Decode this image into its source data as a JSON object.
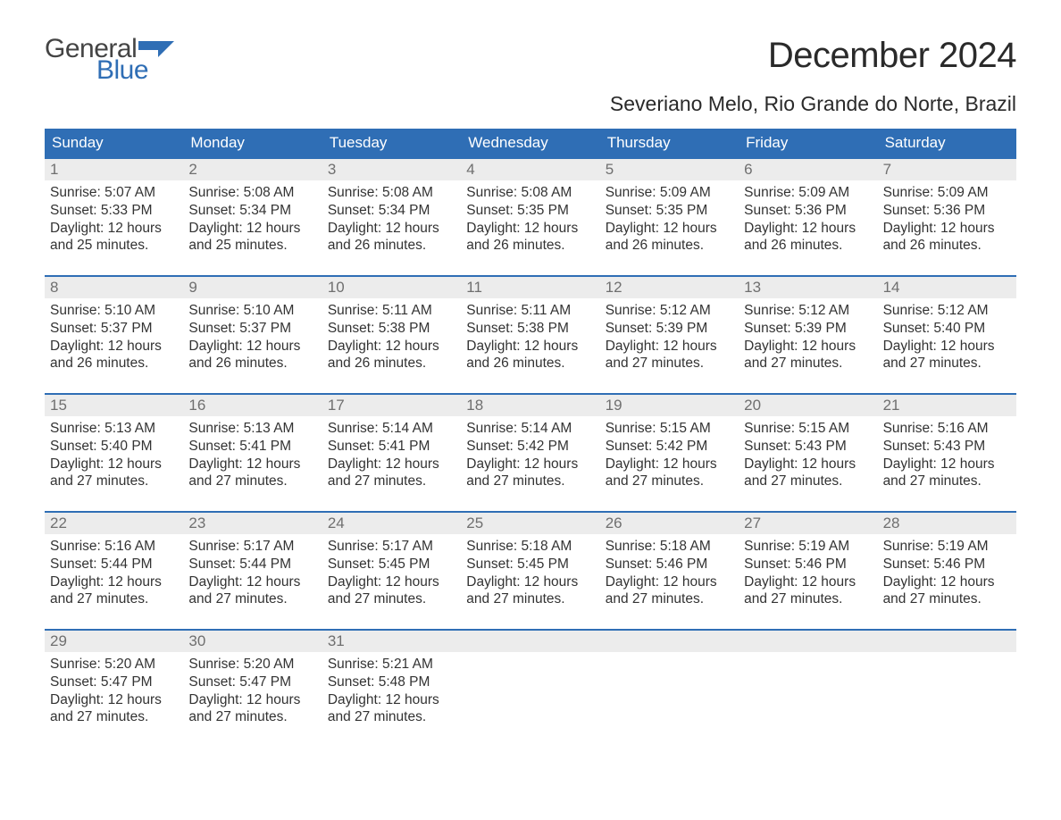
{
  "brand": {
    "word1": "General",
    "word2": "Blue",
    "flag_color": "#2f6eb5"
  },
  "title": "December 2024",
  "location": "Severiano Melo, Rio Grande do Norte, Brazil",
  "colors": {
    "header_bg": "#2f6eb5",
    "header_text": "#ffffff",
    "daynum_bg": "#ececec",
    "daynum_text": "#6f6f6f",
    "body_text": "#333333",
    "week_border": "#2f6eb5",
    "page_bg": "#ffffff"
  },
  "typography": {
    "month_title_fontsize": 40,
    "location_fontsize": 23,
    "day_header_fontsize": 17,
    "daynum_fontsize": 17,
    "cell_fontsize": 15.5,
    "logo_fontsize": 30
  },
  "day_names": [
    "Sunday",
    "Monday",
    "Tuesday",
    "Wednesday",
    "Thursday",
    "Friday",
    "Saturday"
  ],
  "weeks": [
    [
      {
        "n": "1",
        "sunrise": "Sunrise: 5:07 AM",
        "sunset": "Sunset: 5:33 PM",
        "day": "Daylight: 12 hours and 25 minutes."
      },
      {
        "n": "2",
        "sunrise": "Sunrise: 5:08 AM",
        "sunset": "Sunset: 5:34 PM",
        "day": "Daylight: 12 hours and 25 minutes."
      },
      {
        "n": "3",
        "sunrise": "Sunrise: 5:08 AM",
        "sunset": "Sunset: 5:34 PM",
        "day": "Daylight: 12 hours and 26 minutes."
      },
      {
        "n": "4",
        "sunrise": "Sunrise: 5:08 AM",
        "sunset": "Sunset: 5:35 PM",
        "day": "Daylight: 12 hours and 26 minutes."
      },
      {
        "n": "5",
        "sunrise": "Sunrise: 5:09 AM",
        "sunset": "Sunset: 5:35 PM",
        "day": "Daylight: 12 hours and 26 minutes."
      },
      {
        "n": "6",
        "sunrise": "Sunrise: 5:09 AM",
        "sunset": "Sunset: 5:36 PM",
        "day": "Daylight: 12 hours and 26 minutes."
      },
      {
        "n": "7",
        "sunrise": "Sunrise: 5:09 AM",
        "sunset": "Sunset: 5:36 PM",
        "day": "Daylight: 12 hours and 26 minutes."
      }
    ],
    [
      {
        "n": "8",
        "sunrise": "Sunrise: 5:10 AM",
        "sunset": "Sunset: 5:37 PM",
        "day": "Daylight: 12 hours and 26 minutes."
      },
      {
        "n": "9",
        "sunrise": "Sunrise: 5:10 AM",
        "sunset": "Sunset: 5:37 PM",
        "day": "Daylight: 12 hours and 26 minutes."
      },
      {
        "n": "10",
        "sunrise": "Sunrise: 5:11 AM",
        "sunset": "Sunset: 5:38 PM",
        "day": "Daylight: 12 hours and 26 minutes."
      },
      {
        "n": "11",
        "sunrise": "Sunrise: 5:11 AM",
        "sunset": "Sunset: 5:38 PM",
        "day": "Daylight: 12 hours and 26 minutes."
      },
      {
        "n": "12",
        "sunrise": "Sunrise: 5:12 AM",
        "sunset": "Sunset: 5:39 PM",
        "day": "Daylight: 12 hours and 27 minutes."
      },
      {
        "n": "13",
        "sunrise": "Sunrise: 5:12 AM",
        "sunset": "Sunset: 5:39 PM",
        "day": "Daylight: 12 hours and 27 minutes."
      },
      {
        "n": "14",
        "sunrise": "Sunrise: 5:12 AM",
        "sunset": "Sunset: 5:40 PM",
        "day": "Daylight: 12 hours and 27 minutes."
      }
    ],
    [
      {
        "n": "15",
        "sunrise": "Sunrise: 5:13 AM",
        "sunset": "Sunset: 5:40 PM",
        "day": "Daylight: 12 hours and 27 minutes."
      },
      {
        "n": "16",
        "sunrise": "Sunrise: 5:13 AM",
        "sunset": "Sunset: 5:41 PM",
        "day": "Daylight: 12 hours and 27 minutes."
      },
      {
        "n": "17",
        "sunrise": "Sunrise: 5:14 AM",
        "sunset": "Sunset: 5:41 PM",
        "day": "Daylight: 12 hours and 27 minutes."
      },
      {
        "n": "18",
        "sunrise": "Sunrise: 5:14 AM",
        "sunset": "Sunset: 5:42 PM",
        "day": "Daylight: 12 hours and 27 minutes."
      },
      {
        "n": "19",
        "sunrise": "Sunrise: 5:15 AM",
        "sunset": "Sunset: 5:42 PM",
        "day": "Daylight: 12 hours and 27 minutes."
      },
      {
        "n": "20",
        "sunrise": "Sunrise: 5:15 AM",
        "sunset": "Sunset: 5:43 PM",
        "day": "Daylight: 12 hours and 27 minutes."
      },
      {
        "n": "21",
        "sunrise": "Sunrise: 5:16 AM",
        "sunset": "Sunset: 5:43 PM",
        "day": "Daylight: 12 hours and 27 minutes."
      }
    ],
    [
      {
        "n": "22",
        "sunrise": "Sunrise: 5:16 AM",
        "sunset": "Sunset: 5:44 PM",
        "day": "Daylight: 12 hours and 27 minutes."
      },
      {
        "n": "23",
        "sunrise": "Sunrise: 5:17 AM",
        "sunset": "Sunset: 5:44 PM",
        "day": "Daylight: 12 hours and 27 minutes."
      },
      {
        "n": "24",
        "sunrise": "Sunrise: 5:17 AM",
        "sunset": "Sunset: 5:45 PM",
        "day": "Daylight: 12 hours and 27 minutes."
      },
      {
        "n": "25",
        "sunrise": "Sunrise: 5:18 AM",
        "sunset": "Sunset: 5:45 PM",
        "day": "Daylight: 12 hours and 27 minutes."
      },
      {
        "n": "26",
        "sunrise": "Sunrise: 5:18 AM",
        "sunset": "Sunset: 5:46 PM",
        "day": "Daylight: 12 hours and 27 minutes."
      },
      {
        "n": "27",
        "sunrise": "Sunrise: 5:19 AM",
        "sunset": "Sunset: 5:46 PM",
        "day": "Daylight: 12 hours and 27 minutes."
      },
      {
        "n": "28",
        "sunrise": "Sunrise: 5:19 AM",
        "sunset": "Sunset: 5:46 PM",
        "day": "Daylight: 12 hours and 27 minutes."
      }
    ],
    [
      {
        "n": "29",
        "sunrise": "Sunrise: 5:20 AM",
        "sunset": "Sunset: 5:47 PM",
        "day": "Daylight: 12 hours and 27 minutes."
      },
      {
        "n": "30",
        "sunrise": "Sunrise: 5:20 AM",
        "sunset": "Sunset: 5:47 PM",
        "day": "Daylight: 12 hours and 27 minutes."
      },
      {
        "n": "31",
        "sunrise": "Sunrise: 5:21 AM",
        "sunset": "Sunset: 5:48 PM",
        "day": "Daylight: 12 hours and 27 minutes."
      },
      null,
      null,
      null,
      null
    ]
  ]
}
